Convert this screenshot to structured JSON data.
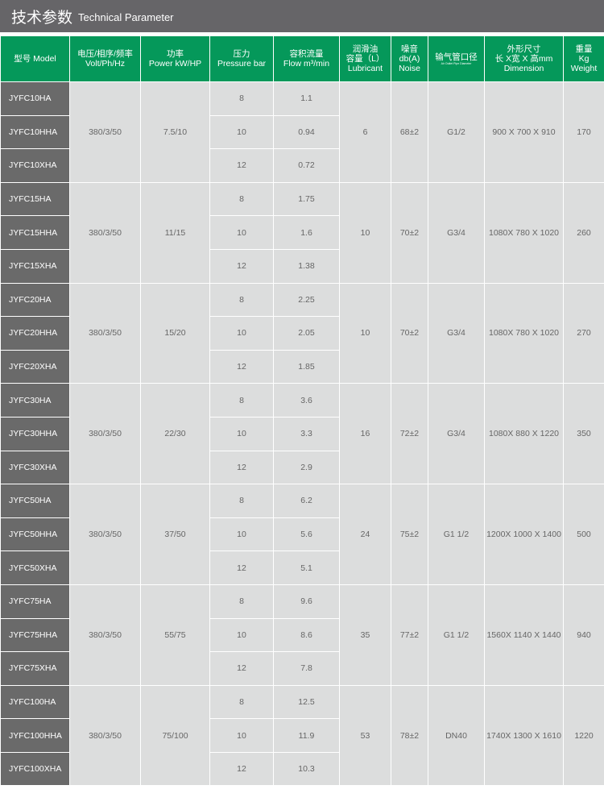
{
  "title": {
    "cn": "技术参数",
    "en": "Technical Parameter"
  },
  "colors": {
    "header_green": "#05985a",
    "title_gray": "#666568",
    "model_gray": "#6a6a6a",
    "cell_gray": "#dcdddd"
  },
  "headers": [
    [
      "型号 Model"
    ],
    [
      "电压/相序/频率",
      "Volt/Ph/Hz"
    ],
    [
      "功率",
      "Power kW/HP"
    ],
    [
      "压力",
      "Pressure bar"
    ],
    [
      "容积流量",
      "Flow m³/min"
    ],
    [
      "润滑油",
      "容量（L）",
      "Lubricant"
    ],
    [
      "噪音",
      "db(A)",
      "Noise"
    ],
    [
      "输气管口径",
      "Air Outlet Pipe Diameter"
    ],
    [
      "外形尺寸",
      "长 X宽 X 高mm",
      "Dimension"
    ],
    [
      "重量",
      "Kg",
      "Weight"
    ]
  ],
  "groups": [
    {
      "models": [
        "JYFC10HA",
        "JYFC10HHA",
        "JYFC10XHA"
      ],
      "volt": "380/3/50",
      "power": "7.5/10",
      "pressure": [
        "8",
        "10",
        "12"
      ],
      "flow": [
        "1.1",
        "0.94",
        "0.72"
      ],
      "lubricant": "6",
      "noise": "68±2",
      "pipe": "G1/2",
      "dimension": "900 X 700 X 910",
      "weight": "170"
    },
    {
      "models": [
        "JYFC15HA",
        "JYFC15HHA",
        "JYFC15XHA"
      ],
      "volt": "380/3/50",
      "power": "11/15",
      "pressure": [
        "8",
        "10",
        "12"
      ],
      "flow": [
        "1.75",
        "1.6",
        "1.38"
      ],
      "lubricant": "10",
      "noise": "70±2",
      "pipe": "G3/4",
      "dimension": "1080X 780 X 1020",
      "weight": "260"
    },
    {
      "models": [
        "JYFC20HA",
        "JYFC20HHA",
        "JYFC20XHA"
      ],
      "volt": "380/3/50",
      "power": "15/20",
      "pressure": [
        "8",
        "10",
        "12"
      ],
      "flow": [
        "2.25",
        "2.05",
        "1.85"
      ],
      "lubricant": "10",
      "noise": "70±2",
      "pipe": "G3/4",
      "dimension": "1080X 780 X 1020",
      "weight": "270"
    },
    {
      "models": [
        "JYFC30HA",
        "JYFC30HHA",
        "JYFC30XHA"
      ],
      "volt": "380/3/50",
      "power": "22/30",
      "pressure": [
        "8",
        "10",
        "12"
      ],
      "flow": [
        "3.6",
        "3.3",
        "2.9"
      ],
      "lubricant": "16",
      "noise": "72±2",
      "pipe": "G3/4",
      "dimension": "1080X 880 X 1220",
      "weight": "350"
    },
    {
      "models": [
        "JYFC50HA",
        "JYFC50HHA",
        "JYFC50XHA"
      ],
      "volt": "380/3/50",
      "power": "37/50",
      "pressure": [
        "8",
        "10",
        "12"
      ],
      "flow": [
        "6.2",
        "5.6",
        "5.1"
      ],
      "lubricant": "24",
      "noise": "75±2",
      "pipe": "G1 1/2",
      "dimension": "1200X 1000 X 1400",
      "weight": "500"
    },
    {
      "models": [
        "JYFC75HA",
        "JYFC75HHA",
        "JYFC75XHA"
      ],
      "volt": "380/3/50",
      "power": "55/75",
      "pressure": [
        "8",
        "10",
        "12"
      ],
      "flow": [
        "9.6",
        "8.6",
        "7.8"
      ],
      "lubricant": "35",
      "noise": "77±2",
      "pipe": "G1 1/2",
      "dimension": "1560X 1140 X 1440",
      "weight": "940"
    },
    {
      "models": [
        "JYFC100HA",
        "JYFC100HHA",
        "JYFC100XHA"
      ],
      "volt": "380/3/50",
      "power": "75/100",
      "pressure": [
        "8",
        "10",
        "12"
      ],
      "flow": [
        "12.5",
        "11.9",
        "10.3"
      ],
      "lubricant": "53",
      "noise": "78±2",
      "pipe": "DN40",
      "dimension": "1740X 1300 X 1610",
      "weight": "1220"
    }
  ]
}
